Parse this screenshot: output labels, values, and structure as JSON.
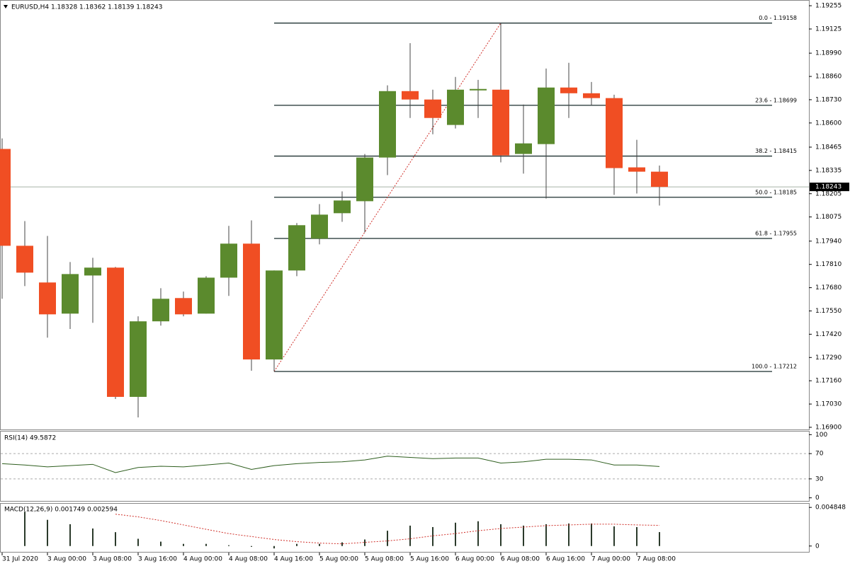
{
  "chart_data": [
    {
      "type": "candlestick",
      "title": "EURUSD,H4  1.18328 1.18362 1.18139 1.18243",
      "categories": [
        "31 Jul 2020",
        null,
        "3 Aug 00:00",
        null,
        "3 Aug 08:00",
        null,
        "3 Aug 16:00",
        null,
        "4 Aug 00:00",
        null,
        "4 Aug 08:00",
        null,
        "4 Aug 16:00",
        null,
        "5 Aug 00:00",
        null,
        "5 Aug 08:00",
        null,
        "5 Aug 16:00",
        null,
        "6 Aug 00:00",
        null,
        "6 Aug 08:00",
        null,
        "6 Aug 16:00",
        null,
        "7 Aug 00:00",
        null,
        "7 Aug 08:00",
        null
      ],
      "open": [
        1.18455,
        1.17914,
        1.17709,
        1.17535,
        1.17748,
        1.17792,
        1.1707,
        1.17492,
        1.17622,
        1.17535,
        1.17736,
        1.17926,
        1.17279,
        1.17776,
        1.17954,
        1.18096,
        1.18163,
        1.18407,
        1.18778,
        1.18731,
        1.18589,
        1.18782,
        1.18786,
        1.18427,
        1.18482,
        1.18798,
        1.18766,
        1.18739,
        1.18352,
        1.18328
      ],
      "high": [
        1.18514,
        1.18052,
        1.17969,
        1.17823,
        1.17847,
        1.17796,
        1.1752,
        1.17677,
        1.17658,
        1.17744,
        1.18025,
        1.18056,
        1.17776,
        1.18041,
        1.18147,
        1.18218,
        1.18427,
        1.1881,
        1.19046,
        1.18786,
        1.18857,
        1.18841,
        1.19158,
        1.18703,
        1.18904,
        1.18936,
        1.18829,
        1.18758,
        1.18506,
        1.18362
      ],
      "low": [
        1.17618,
        1.17689,
        1.17401,
        1.17449,
        1.17484,
        1.17058,
        1.16955,
        1.17468,
        1.1752,
        1.17535,
        1.17634,
        1.17216,
        1.17212,
        1.17744,
        1.17922,
        1.18048,
        1.17989,
        1.18309,
        1.18628,
        1.18537,
        1.18569,
        1.18628,
        1.1838,
        1.18317,
        1.18178,
        1.18628,
        1.18699,
        1.18198,
        1.18206,
        1.18139
      ],
      "close": [
        1.17914,
        1.17764,
        1.17531,
        1.17756,
        1.17792,
        1.1707,
        1.17492,
        1.17618,
        1.17531,
        1.17736,
        1.17926,
        1.17279,
        1.17776,
        1.18029,
        1.18088,
        1.18167,
        1.18407,
        1.18778,
        1.18731,
        1.18628,
        1.18786,
        1.1879,
        1.18419,
        1.18486,
        1.18798,
        1.18766,
        1.18739,
        1.18348,
        1.18328,
        1.18243
      ],
      "up_color": "#5b8a2d",
      "down_color": "#f04e23",
      "ylim": [
        1.16888,
        1.19283
      ],
      "yticks": [
        1.19255,
        1.19125,
        {
          "value": 1.1899,
          "label": "1.18990"
        },
        {
          "value": 1.1886,
          "label": "1.18860"
        },
        {
          "value": 1.1873,
          "label": "1.18730"
        },
        {
          "value": 1.186,
          "label": "1.18600"
        },
        1.18465,
        1.18335,
        1.18205,
        1.18075,
        {
          "value": 1.1794,
          "label": "1.17940"
        },
        {
          "value": 1.1781,
          "label": "1.17810"
        },
        {
          "value": 1.1768,
          "label": "1.17680"
        },
        {
          "value": 1.1755,
          "label": "1.17550"
        },
        {
          "value": 1.1742,
          "label": "1.17420"
        },
        {
          "value": 1.1729,
          "label": "1.17290"
        },
        {
          "value": 1.1716,
          "label": "1.17160"
        },
        {
          "value": 1.1703,
          "label": "1.17030"
        },
        {
          "value": 1.169,
          "label": "1.16900"
        }
      ],
      "current_price": 1.18243,
      "fib_levels": [
        {
          "value": 1.19158,
          "label": "0.0 - 1.19158"
        },
        {
          "value": 1.18699,
          "label": "23.6 - 1.18699"
        },
        {
          "value": 1.18415,
          "label": "38.2 - 1.18415"
        },
        {
          "value": 1.18185,
          "label": "50.0 - 1.18185"
        },
        {
          "value": 1.17955,
          "label": "61.8 - 1.17955"
        },
        {
          "value": 1.17212,
          "label": "100.0 - 1.17212"
        }
      ]
    },
    {
      "type": "line",
      "title": "RSI(14) 49.5872",
      "values": [
        54,
        52,
        49,
        51,
        53,
        40,
        48,
        50,
        49,
        52,
        55,
        45,
        51,
        54,
        56,
        57,
        60,
        66,
        64,
        62,
        63,
        63,
        55,
        57,
        61,
        61,
        60,
        52,
        52,
        49.5872
      ],
      "color": "#2e5e1e",
      "ylim": [
        -6,
        106
      ],
      "yticks": [
        100,
        70,
        30,
        0
      ],
      "levels": [
        70,
        30
      ]
    },
    {
      "type": "bar",
      "title": "MACD(12,26,9) 0.001749 0.002594",
      "values": [
        null,
        0.0043,
        0.00329,
        0.00274,
        0.0022,
        0.00174,
        0.00091,
        0.00055,
        0.00027,
        0.00027,
        0.0001,
        -0.0001,
        -0.0003,
        0.00027,
        0.00027,
        0.00046,
        0.00082,
        0.00192,
        0.00256,
        0.00238,
        0.00293,
        0.00311,
        0.00274,
        0.00256,
        0.00274,
        0.00283,
        0.00283,
        0.00247,
        0.00238,
        0.001749
      ],
      "signal": [
        null,
        null,
        null,
        null,
        null,
        0.004,
        0.00366,
        0.0032,
        0.00265,
        0.0021,
        0.00156,
        0.00119,
        0.00082,
        0.00055,
        0.00037,
        0.00027,
        0.00046,
        0.00064,
        0.00091,
        0.00128,
        0.00156,
        0.00192,
        0.0022,
        0.00238,
        0.00256,
        0.00265,
        0.00274,
        0.00274,
        0.00265,
        0.002594
      ],
      "color": "#2b3a2b",
      "signal_color": "#d0302a",
      "ylim": [
        -0.00082,
        0.005397
      ],
      "yticks": [
        0.004848,
        0
      ]
    }
  ]
}
